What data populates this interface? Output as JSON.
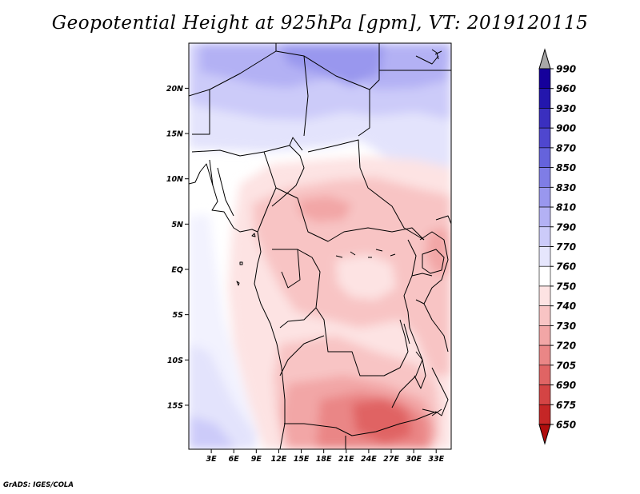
{
  "title": "Geopotential Height at 925hPa [gpm], VT: 2019120115",
  "credit": "GrADS: IGES/COLA",
  "map": {
    "lon_range": [
      0,
      35
    ],
    "lat_range": [
      -20,
      25
    ],
    "x_ticks": [
      {
        "lon": 3,
        "label": "3E"
      },
      {
        "lon": 6,
        "label": "6E"
      },
      {
        "lon": 9,
        "label": "9E"
      },
      {
        "lon": 12,
        "label": "12E"
      },
      {
        "lon": 15,
        "label": "15E"
      },
      {
        "lon": 18,
        "label": "18E"
      },
      {
        "lon": 21,
        "label": "21E"
      },
      {
        "lon": 24,
        "label": "24E"
      },
      {
        "lon": 27,
        "label": "27E"
      },
      {
        "lon": 30,
        "label": "30E"
      },
      {
        "lon": 33,
        "label": "33E"
      }
    ],
    "y_ticks": [
      {
        "lat": 20,
        "label": "20N"
      },
      {
        "lat": 15,
        "label": "15N"
      },
      {
        "lat": 10,
        "label": "10N"
      },
      {
        "lat": 5,
        "label": "5N"
      },
      {
        "lat": 0,
        "label": "EQ"
      },
      {
        "lat": -5,
        "label": "5S"
      },
      {
        "lat": -10,
        "label": "10S"
      },
      {
        "lat": -15,
        "label": "15S"
      }
    ]
  },
  "colorbar": {
    "labels": [
      "990",
      "960",
      "930",
      "900",
      "870",
      "850",
      "830",
      "810",
      "790",
      "770",
      "760",
      "750",
      "740",
      "730",
      "720",
      "705",
      "690",
      "675",
      "650"
    ],
    "colors": [
      "#15009b",
      "#2316ad",
      "#3a2fbf",
      "#4f47cf",
      "#6563dc",
      "#7f7de6",
      "#9997ee",
      "#b3b1f4",
      "#cccbf9",
      "#e6e6fc",
      "#ffffff",
      "#fde3e3",
      "#f8c4c4",
      "#f2a6a6",
      "#ea8686",
      "#e06464",
      "#d44444",
      "#c52626",
      "#b00d0d"
    ]
  }
}
